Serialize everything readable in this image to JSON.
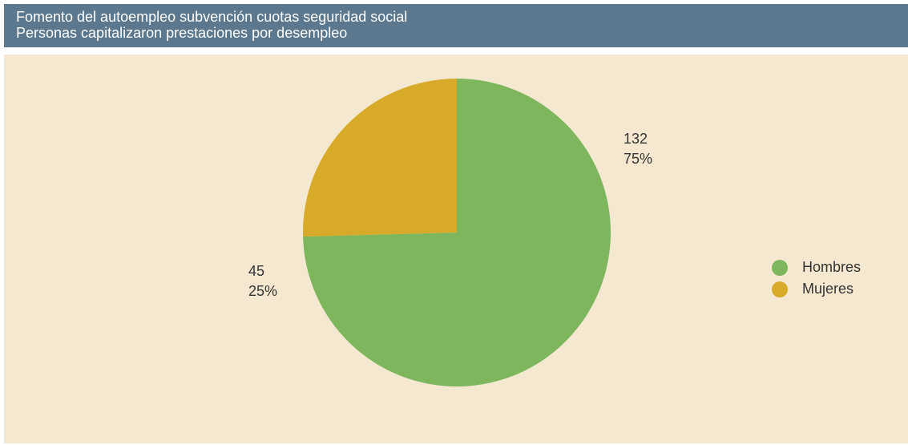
{
  "header": {
    "title": "Fomento del autoempleo subvención cuotas seguridad social",
    "subtitle": "Personas capitalizaron prestaciones por desempleo"
  },
  "chart_data": {
    "type": "pie",
    "title": "Fomento del autoempleo subvención cuotas seguridad social",
    "subtitle": "Personas capitalizaron prestaciones por desempleo",
    "categories": [
      "Hombres",
      "Mujeres"
    ],
    "values": [
      132,
      45
    ],
    "percent_labels": [
      "75%",
      "25%"
    ],
    "value_labels": [
      "132",
      "45"
    ],
    "colors": [
      "#7db65d",
      "#d8aa2a"
    ],
    "legend_position": "right",
    "start_angle": "12 o'clock, clockwise"
  }
}
